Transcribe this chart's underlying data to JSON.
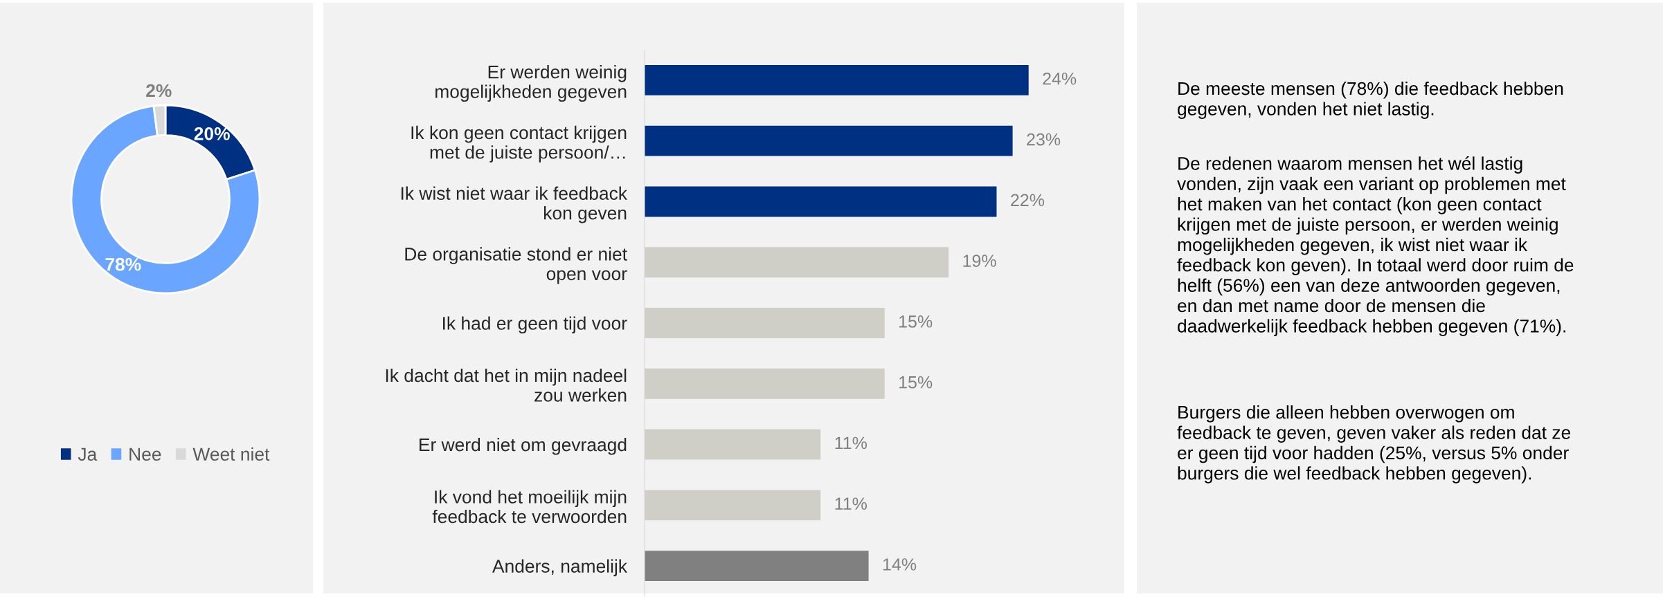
{
  "chart_data": [
    {
      "type": "donut",
      "categories": [
        "Ja",
        "Nee",
        "Weet niet"
      ],
      "values": [
        20,
        78,
        2
      ],
      "colors": [
        "#003082",
        "#6aa6ff",
        "#d9d9d9"
      ],
      "value_labels": [
        "20%",
        "78%",
        "2%"
      ],
      "legend": "bottom"
    },
    {
      "type": "bar",
      "orientation": "horizontal",
      "categories": [
        "Er werden weinig\nmogelijkheden gegeven",
        "Ik kon geen contact krijgen\nmet de juiste persoon/…",
        "Ik wist niet waar ik feedback\nkon geven",
        "De organisatie stond er niet\nopen voor",
        "Ik had er geen tijd voor",
        "Ik dacht dat het in mijn nadeel\nzou werken",
        "Er werd niet om gevraagd",
        "Ik vond het moeilijk mijn\nfeedback te verwoorden",
        "Anders, namelijk"
      ],
      "values": [
        24,
        23,
        22,
        19,
        15,
        15,
        11,
        11,
        14
      ],
      "colors": [
        "#003082",
        "#003082",
        "#003082",
        "#cfcfc7",
        "#cfcfc7",
        "#cfcfc7",
        "#cfcfc7",
        "#cfcfc7",
        "#808080"
      ],
      "value_labels": [
        "24%",
        "23%",
        "22%",
        "19%",
        "15%",
        "15%",
        "11%",
        "11%",
        "14%"
      ]
    },
    {
      "type": "other",
      "annotations": [
        "De meeste mensen (78%) die feedback hebben\ngegeven, vonden het niet lastig.",
        "De redenen waarom mensen het wél lastig\nvonden, zijn vaak een variant op problemen met\nhet maken van het contact (kon geen contact\nkrijgen met de juiste persoon, er werden weinig\nmogelijkheden gegeven, ik wist niet waar ik\nfeedback kon geven). In totaal werd door ruim de\nhelft (56%) een van deze antwoorden gegeven,\nen dan met name door de mensen die\ndaadwerkelijk feedback hebben gegeven (71%).",
        "Burgers die alleen hebben overwogen om\nfeedback te geven, geven vaker als reden dat ze\ner geen tijd voor hadden (25%, versus 5% onder\nburgers die wel feedback hebben gegeven)."
      ]
    }
  ]
}
